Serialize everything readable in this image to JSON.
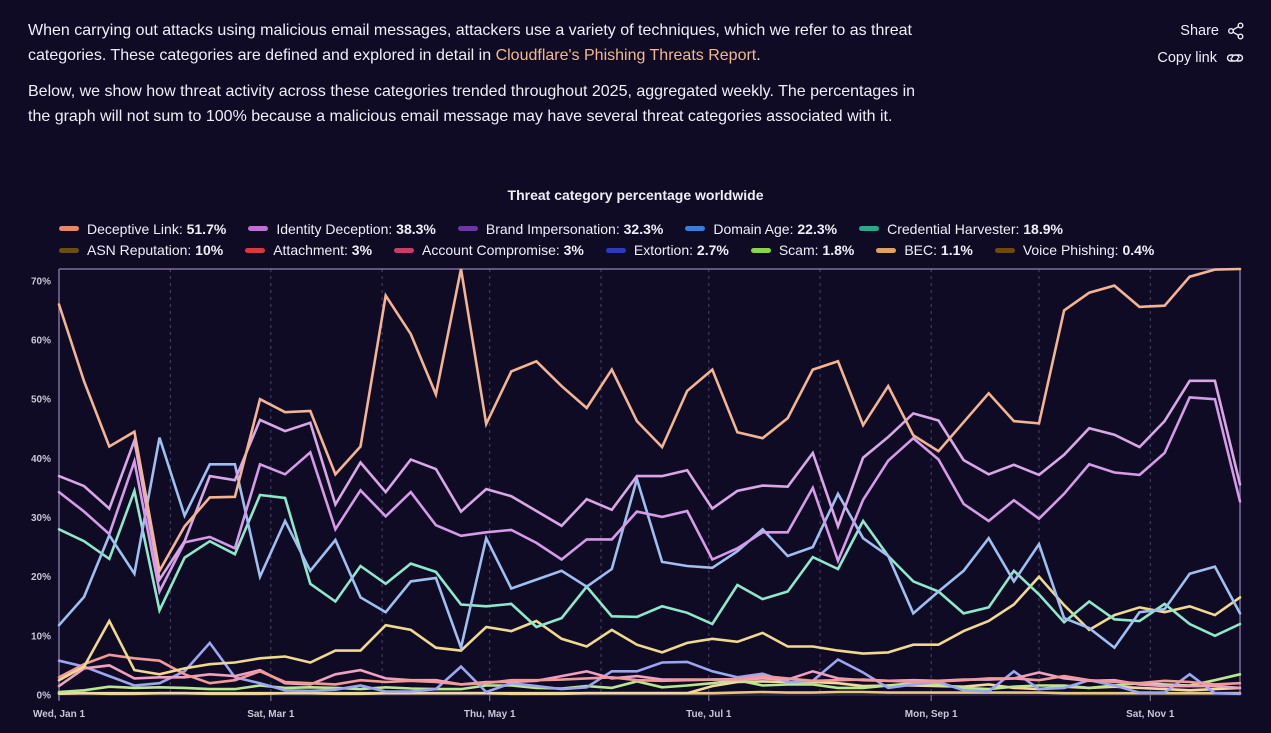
{
  "intro": {
    "paragraph1_before_link": "When carrying out attacks using malicious email messages, attackers use a variety of techniques, which we refer to as threat categories. These categories are defined and explored in detail in ",
    "paragraph1_link": "Cloudflare's Phishing Threats Report",
    "paragraph1_after_link": ".",
    "paragraph2": "Below, we show how threat activity across these categories trended throughout 2025, aggregated weekly. The percentages in the graph will not sum to 100% because a malicious email message may have several threat categories associated with it."
  },
  "actions": {
    "share_label": "Share",
    "share_icon": "share-icon",
    "copy_link_label": "Copy link",
    "copy_link_icon": "link-icon"
  },
  "chart_data": {
    "type": "line",
    "title": "Threat category percentage worldwide",
    "xlabel": "",
    "ylabel": "",
    "ylim": [
      0,
      72
    ],
    "yticks": [
      "0%",
      "10%",
      "20%",
      "30%",
      "40%",
      "50%",
      "60%",
      "70%"
    ],
    "ytick_values": [
      0,
      10,
      20,
      30,
      40,
      50,
      60,
      70
    ],
    "xticks": [
      "Wed, Jan 1",
      "Sat, Mar 1",
      "Thu, May 1",
      "Tue, Jul 1",
      "Mon, Sep 1",
      "Sat, Nov 1"
    ],
    "xtick_week_index": [
      0,
      8.43,
      17.14,
      25.86,
      34.71,
      43.43
    ],
    "month_gridlines_week_index": [
      4.43,
      8.43,
      12.86,
      17.14,
      21.57,
      25.86,
      30.29,
      34.71,
      39.0,
      43.43
    ],
    "x_start": "2025-01-01",
    "x_interval": "weekly",
    "grid": "vertical dashed monthly",
    "legend_position": "top",
    "series": [
      {
        "name": "Deceptive Link",
        "total": "51.7%",
        "legend_color": "#e8866a",
        "line_color": "#f2b493",
        "values": [
          66,
          53,
          42,
          44.5,
          21,
          28.5,
          33.4,
          33.5,
          50,
          47.8,
          48,
          37.3,
          42,
          67.5,
          61,
          50.8,
          72,
          45.8,
          54.7,
          56.4,
          52.2,
          48.5,
          55,
          46.3,
          41.9,
          51.4,
          55,
          44.4,
          43.4,
          46.8,
          55,
          56.4,
          45.6,
          52.2,
          43.9,
          41.2,
          46.1,
          51,
          46.3,
          45.9,
          65,
          68,
          69.2,
          65.6,
          65.8,
          70.7,
          71.9,
          72
        ]
      },
      {
        "name": "Identity Deception",
        "total": "38.3%",
        "legend_color": "#c26ed6",
        "line_color": "#d9a6e6",
        "values": [
          37,
          35.3,
          31.5,
          43,
          19.5,
          26,
          37,
          36.3,
          46.5,
          44.6,
          46,
          32.2,
          39.3,
          34.3,
          39.8,
          38.2,
          31,
          34.8,
          33.6,
          31.1,
          28.6,
          33.1,
          31.3,
          37,
          37,
          38,
          31.5,
          34.5,
          35.4,
          35.2,
          40.9,
          28.5,
          40.1,
          43.6,
          47.6,
          46.4,
          39.7,
          37.3,
          38.9,
          37.2,
          40.6,
          45.1,
          44,
          41.9,
          46.3,
          53.1,
          53.1,
          35.6
        ]
      },
      {
        "name": "Brand Impersonation",
        "total": "32.3%",
        "legend_color": "#6d35a8",
        "line_color": "#d69be8",
        "values": [
          34.3,
          31,
          27.2,
          39.5,
          17.5,
          25.8,
          26.7,
          24.8,
          39,
          37.3,
          41,
          28,
          34.6,
          30.2,
          34.3,
          28.7,
          26.9,
          27.5,
          27.9,
          25.7,
          22.9,
          26.3,
          26.3,
          31,
          30.1,
          31.1,
          22.9,
          24.8,
          27.5,
          27.5,
          35,
          22.7,
          33,
          39.6,
          43.4,
          39.8,
          32.3,
          29.4,
          32.9,
          29.8,
          34,
          39,
          37.6,
          37.2,
          40.9,
          50.3,
          50,
          32.7
        ]
      },
      {
        "name": "Domain Age",
        "total": "22.3%",
        "legend_color": "#3b7dd8",
        "line_color": "#9fbff0",
        "values": [
          11.8,
          16.6,
          27,
          20.5,
          43.5,
          30.3,
          39,
          39,
          20,
          29.4,
          21,
          26.2,
          16.5,
          14,
          19.2,
          19.8,
          8,
          26.5,
          18,
          19.5,
          21,
          18.3,
          21.3,
          36.5,
          22.5,
          21.8,
          21.5,
          24.3,
          28,
          23.5,
          25,
          34,
          26.5,
          23.5,
          13.8,
          17.5,
          21,
          26.5,
          19.2,
          25.5,
          13,
          11.3,
          8,
          14,
          14.5,
          20.5,
          21.7,
          13.8
        ]
      },
      {
        "name": "Credential Harvester",
        "total": "18.9%",
        "legend_color": "#2aa88a",
        "line_color": "#8ee8c9",
        "values": [
          28,
          26,
          23,
          34.5,
          14.3,
          23.2,
          26,
          23.8,
          33.8,
          33.3,
          18.8,
          15.8,
          21.8,
          18.8,
          22.2,
          20.8,
          15.3,
          15,
          15.4,
          11.5,
          13,
          18.3,
          13.3,
          13.2,
          15,
          13.9,
          12,
          18.6,
          16.2,
          17.5,
          23.3,
          21.3,
          29.4,
          23.5,
          19.2,
          17.5,
          13.8,
          14.8,
          21,
          17,
          12.3,
          15.8,
          12.8,
          12.5,
          15.4,
          12,
          10,
          12
        ]
      },
      {
        "name": "ASN Reputation",
        "total": "10%",
        "legend_color": "#6b4f0e",
        "line_color": "#f0d98f",
        "values": [
          2.5,
          4.8,
          12.5,
          4.2,
          3.5,
          4.5,
          5.2,
          5.5,
          6.2,
          6.5,
          5.5,
          7.5,
          7.5,
          11.8,
          11,
          8,
          7.5,
          11.5,
          10.8,
          12.5,
          9.5,
          8.2,
          11,
          8.5,
          7.2,
          8.8,
          9.5,
          9,
          10.5,
          8.2,
          8.2,
          7.5,
          7,
          7.2,
          8.5,
          8.5,
          10.8,
          12.5,
          15.3,
          20,
          15.2,
          11,
          13.5,
          14.8,
          14,
          15,
          13.5,
          16.5
        ]
      },
      {
        "name": "Attachment",
        "total": "3%",
        "legend_color": "#d9393a",
        "line_color": "#f29a9a",
        "values": [
          3,
          5.2,
          6.8,
          6.2,
          5.8,
          3.5,
          2,
          2.5,
          4,
          2.2,
          2,
          1.8,
          2.5,
          2.2,
          2.4,
          2.2,
          1.8,
          2,
          2.5,
          2.5,
          2.6,
          2.8,
          3,
          2.5,
          2.4,
          2.5,
          2.6,
          2.7,
          3.2,
          2.8,
          2.4,
          2.5,
          2.6,
          2.4,
          2.2,
          2.3,
          2.5,
          2.8,
          2.8,
          2.5,
          3.2,
          2.5,
          2.2,
          2,
          2.4,
          2.2,
          1.8,
          2
        ]
      },
      {
        "name": "Account Compromise",
        "total": "3%",
        "legend_color": "#c93d6a",
        "line_color": "#f0a0c0",
        "values": [
          1.5,
          4.5,
          5,
          2.8,
          3,
          3,
          3.5,
          3.2,
          4.2,
          2,
          1.8,
          3.5,
          4.2,
          2.8,
          2.5,
          2.5,
          1.8,
          2.2,
          2.2,
          2.4,
          3.2,
          4,
          2.8,
          3.2,
          2.6,
          2.6,
          2.6,
          2.6,
          2.8,
          2.6,
          4,
          2.8,
          2.5,
          2.4,
          2.5,
          2.4,
          2.6,
          2.6,
          2.8,
          3.8,
          2.8,
          2.4,
          2.5,
          1.8,
          1.5,
          1.5,
          1.5,
          1.2
        ]
      },
      {
        "name": "Extortion",
        "total": "2.7%",
        "legend_color": "#2c3bb8",
        "line_color": "#9aa6f0",
        "values": [
          5.8,
          4.8,
          3.2,
          1.6,
          2,
          4,
          8.8,
          3,
          2,
          0.8,
          0.7,
          0.9,
          1.6,
          0.6,
          0.6,
          1,
          4.8,
          0.5,
          2,
          1.5,
          1,
          1.3,
          4,
          4,
          5.5,
          5.6,
          4,
          3,
          3.6,
          2.2,
          2.4,
          6,
          3.8,
          1.2,
          1.8,
          2.2,
          0.8,
          0.6,
          4,
          1,
          1.2,
          2.5,
          1.6,
          0.4,
          0.4,
          3.5,
          0.3,
          0.2
        ]
      },
      {
        "name": "Scam",
        "total": "1.8%",
        "legend_color": "#8ad64a",
        "line_color": "#b6e88e",
        "values": [
          0.5,
          0.8,
          1.4,
          1.2,
          1.3,
          1.2,
          1,
          1,
          1.6,
          1.2,
          1.3,
          1.2,
          1,
          1.3,
          1.1,
          1,
          1,
          1.6,
          1.6,
          1.2,
          1.1,
          1.5,
          1.2,
          2.3,
          1.3,
          1.6,
          2,
          2.5,
          1.6,
          1.8,
          1.8,
          1.2,
          1.2,
          1.6,
          2,
          1.8,
          1.2,
          1,
          1.4,
          1.6,
          1.6,
          1.2,
          1.6,
          2,
          1.8,
          1.6,
          2.5,
          3.5
        ]
      },
      {
        "name": "BEC",
        "total": "1.1%",
        "legend_color": "#e0a060",
        "line_color": "#f2d8a0",
        "values": [
          0.3,
          0.3,
          0.3,
          0.3,
          0.3,
          0.3,
          0.3,
          0.3,
          0.3,
          0.3,
          0.3,
          0.3,
          0.3,
          0.3,
          0.3,
          0.3,
          0.3,
          0.3,
          0.3,
          0.3,
          0.3,
          0.3,
          0.3,
          0.3,
          0.3,
          0.3,
          1.5,
          2.2,
          2.3,
          2.2,
          2.2,
          2,
          1.5,
          1.6,
          1.6,
          1.5,
          1.4,
          1.8,
          1.2,
          1,
          1.4,
          1.2,
          1.4,
          1.2,
          1,
          0.8,
          1,
          1.2
        ]
      },
      {
        "name": "Voice Phishing",
        "total": "0.4%",
        "legend_color": "#6e4a0a",
        "line_color": "#e8c878",
        "values": [
          0.2,
          0.3,
          0.2,
          0.2,
          0.3,
          0.3,
          0.2,
          0.2,
          0.2,
          0.3,
          0.3,
          0.2,
          0.2,
          0.3,
          0.3,
          0.3,
          0.3,
          0.3,
          0.2,
          0.2,
          0.2,
          0.3,
          0.3,
          0.3,
          0.3,
          0.3,
          0.3,
          0.4,
          0.5,
          0.4,
          0.4,
          0.5,
          0.5,
          0.4,
          0.4,
          0.4,
          0.4,
          0.4,
          0.4,
          0.4,
          0.3,
          0.3,
          0.3,
          0.3,
          0.3,
          0.3,
          0.3,
          0.3
        ]
      }
    ]
  },
  "colors": {
    "background": "#0f0b25",
    "text": "#f0eef8",
    "link": "#f2b98e",
    "axis": "#7a7199",
    "gridline": "#4a4468"
  }
}
